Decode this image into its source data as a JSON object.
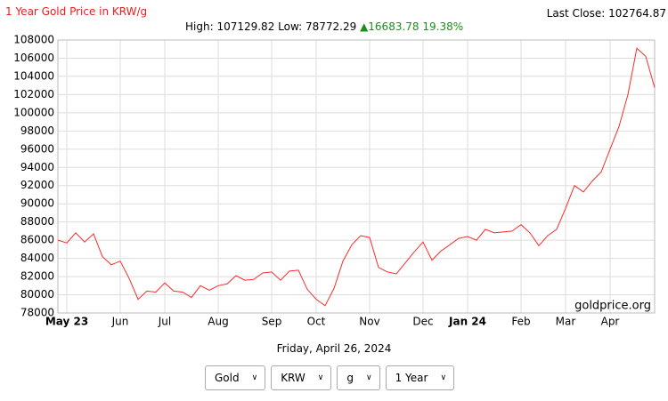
{
  "chart_data": {
    "type": "line",
    "title": "1 Year Gold Price in KRW/g",
    "last_close": "Last Close: 102764.87",
    "high_low": "High: 107129.82 Low: 78772.29",
    "change": "▲16683.78 19.38%",
    "source": "goldprice.org",
    "date": "Friday, April 26, 2024",
    "categories": [
      null,
      "May 23",
      null,
      null,
      null,
      null,
      null,
      "Jun",
      null,
      null,
      null,
      null,
      "Jul",
      null,
      null,
      null,
      null,
      null,
      "Aug",
      null,
      null,
      null,
      null,
      null,
      "Sep",
      null,
      null,
      null,
      null,
      "Oct",
      null,
      null,
      null,
      null,
      null,
      "Nov",
      null,
      null,
      null,
      null,
      null,
      "Dec",
      null,
      null,
      null,
      null,
      "Jan 24",
      null,
      null,
      null,
      null,
      null,
      "Feb",
      null,
      null,
      null,
      null,
      "Mar",
      null,
      null,
      null,
      null,
      "Apr",
      null,
      null,
      null,
      null,
      null
    ],
    "series": [
      {
        "name": "Gold",
        "color": "#ff2a2a",
        "values": [
          86000,
          85700,
          86800,
          85800,
          86700,
          84200,
          83300,
          83700,
          81800,
          79500,
          80400,
          80300,
          81300,
          80400,
          80300,
          79700,
          81000,
          80500,
          81000,
          81200,
          82100,
          81600,
          81700,
          82400,
          82500,
          81600,
          82600,
          82700,
          80600,
          79500,
          78800,
          80700,
          83700,
          85500,
          86500,
          86300,
          83000,
          82500,
          82300,
          83500,
          84700,
          85800,
          83800,
          84800,
          85500,
          86200,
          86400,
          86000,
          87200,
          86800,
          86900,
          87000,
          87700,
          86800,
          85400,
          86500,
          87200,
          89500,
          92000,
          91300,
          92500,
          93500,
          96000,
          98500,
          102000,
          107100,
          106200,
          102765
        ]
      }
    ],
    "ylim": [
      78000,
      108000
    ],
    "yticks": [
      78000,
      80000,
      82000,
      84000,
      86000,
      88000,
      90000,
      92000,
      94000,
      96000,
      98000,
      100000,
      102000,
      104000,
      106000,
      108000
    ],
    "grid": true
  },
  "controls": [
    "Gold",
    "KRW",
    "g",
    "1 Year"
  ]
}
